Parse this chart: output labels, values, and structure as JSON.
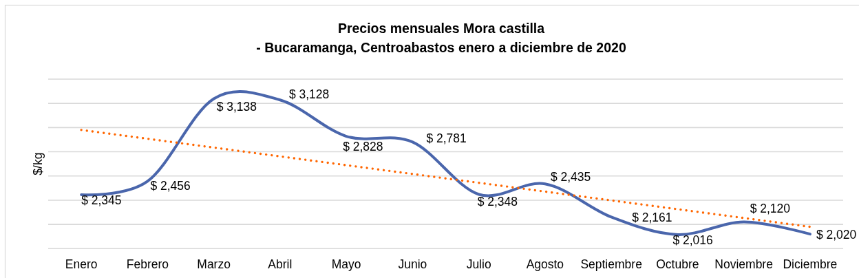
{
  "chart_data": {
    "type": "line",
    "title": "Precios mensuales Mora castilla\n- Bucaramanga, Centroabastos enero a diciembre de 2020",
    "ylabel": "$/kg",
    "categories": [
      "Enero",
      "Febrero",
      "Marzo",
      "Abril",
      "Mayo",
      "Junio",
      "Julio",
      "Agosto",
      "Septiembre",
      "Octubre",
      "Noviembre",
      "Diciembre"
    ],
    "series": [
      {
        "color": "#4a66ac",
        "values": [
          2345,
          2456,
          3138,
          3128,
          2828,
          2781,
          2348,
          2435,
          2161,
          2016,
          2120,
          2020
        ],
        "value_labels": [
          "$ 2,345",
          "$ 2,456",
          "$ 3,138",
          "$ 3,128",
          "$ 2,828",
          "$ 2,781",
          "$ 2,348",
          "$ 2,435",
          "$ 2,161",
          "$ 2,016",
          "$ 2,120",
          "$ 2,020"
        ]
      },
      {
        "x": [
          "Enero",
          "Diciembre"
        ],
        "values": [
          2880,
          2080
        ],
        "color": "#ff6600",
        "line_style": "dotted"
      }
    ],
    "ylim": [
      1900,
      3300
    ],
    "yticks": [
      {
        "value": 1900,
        "label": null
      },
      {
        "value": 2100,
        "label": null
      },
      {
        "value": 2300,
        "label": null
      },
      {
        "value": 2500,
        "label": null
      },
      {
        "value": 2700,
        "label": null
      },
      {
        "value": 2900,
        "label": null
      },
      {
        "value": 3100,
        "label": null
      },
      {
        "value": 3300,
        "label": null
      }
    ],
    "grid": "y",
    "tick_labels": "x"
  }
}
